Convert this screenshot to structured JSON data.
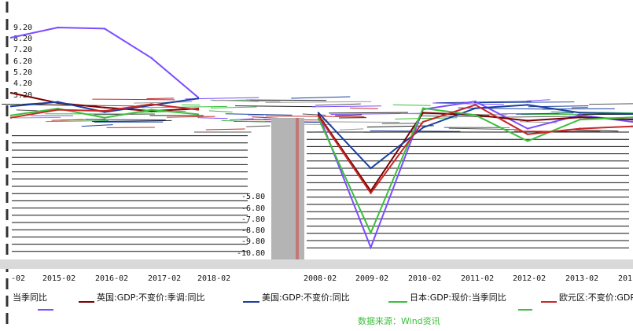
{
  "chart_data": [
    {
      "type": "line",
      "title": "",
      "xlabel": "",
      "ylabel": "",
      "categories": [
        "-02",
        "2015-02",
        "2016-02",
        "2017-02",
        "2018-02"
      ],
      "y_ticks": [
        "9.20",
        "8.20",
        "7.20",
        "6.20",
        "5.20",
        "4.20",
        "3.20"
      ],
      "ylim": [
        -10.8,
        9.2
      ],
      "grid": false,
      "series": [
        {
          "name": "当季同比",
          "color": "#7b4dff",
          "values": [
            8.3,
            9.2,
            9.1,
            6.5,
            3.0
          ]
        },
        {
          "name": "英国:GDP:不变价:季调:同比",
          "color": "#7a0000",
          "values": [
            3.4,
            2.5,
            2.1,
            1.8,
            2.0
          ]
        },
        {
          "name": "美国:GDP:不变价:同比",
          "color": "#1a3fa0",
          "values": [
            2.2,
            2.6,
            1.7,
            2.3,
            2.9
          ]
        },
        {
          "name": "日本:GDP:现价:当季同比",
          "color": "#3cbf3c",
          "values": [
            1.4,
            2.0,
            1.2,
            1.9,
            1.5
          ]
        },
        {
          "name": "欧元区:不变价:GDP",
          "color": "#c62828",
          "values": [
            1.2,
            1.9,
            1.8,
            2.4,
            1.9
          ]
        }
      ]
    },
    {
      "type": "line",
      "title": "",
      "xlabel": "",
      "ylabel": "",
      "categories": [
        "2008-02",
        "2009-02",
        "2010-02",
        "2011-02",
        "2012-02",
        "2013-02",
        "201"
      ],
      "y_ticks": [
        "-5.80",
        "-6.80",
        "-7.80",
        "-8.80",
        "-9.80",
        "-10.80"
      ],
      "ylim": [
        -10.8,
        9.2
      ],
      "grid": false,
      "series": [
        {
          "name": "当季同比",
          "color": "#7b4dff",
          "values": [
            1.5,
            -10.3,
            1.9,
            2.6,
            0.2,
            1.4,
            0.8
          ]
        },
        {
          "name": "英国:GDP:不变价:季调:同比",
          "color": "#7a0000",
          "values": [
            1.4,
            -5.3,
            1.6,
            1.4,
            0.9,
            1.2,
            1.0
          ]
        },
        {
          "name": "美国:GDP:不变价:同比",
          "color": "#1a3fa0",
          "values": [
            1.6,
            -3.3,
            0.3,
            2.0,
            2.3,
            1.6,
            1.5
          ]
        },
        {
          "name": "日本:GDP:现价:当季同比",
          "color": "#3cbf3c",
          "values": [
            1.1,
            -9.0,
            2.0,
            1.4,
            -0.9,
            1.0,
            1.2
          ]
        },
        {
          "name": "欧元区:不变价:GDP",
          "color": "#c62828",
          "values": [
            1.3,
            -5.5,
            0.8,
            2.3,
            -0.3,
            0.2,
            0.4
          ]
        }
      ]
    }
  ],
  "legend": {
    "items": [
      {
        "label": "当季同比",
        "color": "#7b4dff"
      },
      {
        "label": "英国:GDP:不变价:季调:同比",
        "color": "#7a0000"
      },
      {
        "label": "美国:GDP:不变价:同比",
        "color": "#1a3fa0"
      },
      {
        "label": "日本:GDP:现价:当季同比",
        "color": "#3cbf3c"
      },
      {
        "label": "欧元区:不变价:GDP",
        "color": "#c62828"
      }
    ]
  },
  "source_text": "数据来源：Wind资讯"
}
